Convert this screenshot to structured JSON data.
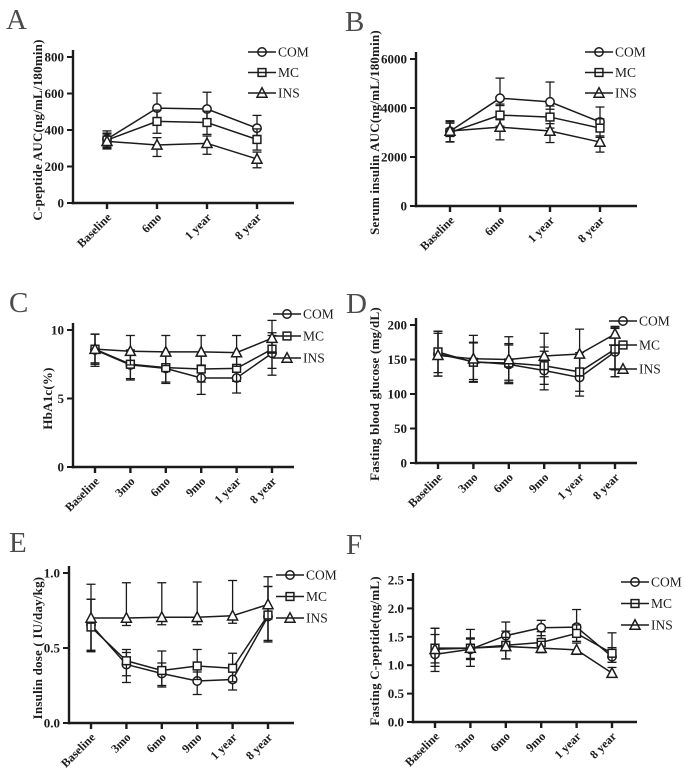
{
  "figure": {
    "background": "#ffffff",
    "ink_color": "#1b1b1b",
    "letter_color": "#4b4b4b",
    "legend_labels": [
      "COM",
      "MC",
      "INS"
    ]
  },
  "chart_data": [
    {
      "panel_label": "A",
      "type": "line",
      "title": "",
      "ylabel": "C-peptide AUC(ng/mL/180min)",
      "xlabel": "",
      "ylim": [
        0,
        800
      ],
      "yticks": [
        0,
        200,
        400,
        600,
        800
      ],
      "ytick_labels": [
        "0",
        "200",
        "400",
        "600",
        "800"
      ],
      "categories": [
        "Baseline",
        "6mo",
        "1 year",
        "8 year"
      ],
      "grid": false,
      "legend_position": "top-right",
      "series": [
        {
          "name": "COM",
          "marker": "circle",
          "values": [
            350,
            520,
            515,
            410
          ],
          "err_up": [
            45,
            82,
            92,
            70
          ],
          "err_down": [
            48,
            55,
            55,
            40
          ]
        },
        {
          "name": "MC",
          "marker": "square",
          "values": [
            345,
            447,
            441,
            348
          ],
          "err_up": [
            38,
            62,
            62,
            58
          ],
          "err_down": [
            38,
            65,
            65,
            58
          ]
        },
        {
          "name": "INS",
          "marker": "triangle",
          "values": [
            338,
            318,
            327,
            241
          ],
          "err_up": [
            40,
            40,
            40,
            38
          ],
          "err_down": [
            42,
            63,
            60,
            48
          ]
        }
      ]
    },
    {
      "panel_label": "B",
      "type": "line",
      "title": "",
      "ylabel": "Serum insulin AUC(ng/mL/180min)",
      "xlabel": "",
      "ylim": [
        0,
        6000
      ],
      "yticks": [
        0,
        2000,
        4000,
        6000
      ],
      "ytick_labels": [
        "0",
        "2000",
        "4000",
        "6000"
      ],
      "categories": [
        "Baseline",
        "6mo",
        "1 year",
        "8 year"
      ],
      "grid": false,
      "legend_position": "top-right",
      "series": [
        {
          "name": "COM",
          "marker": "circle",
          "values": [
            3050,
            4400,
            4250,
            3430
          ],
          "err_up": [
            430,
            820,
            810,
            610
          ],
          "err_down": [
            430,
            300,
            300,
            300
          ]
        },
        {
          "name": "MC",
          "marker": "square",
          "values": [
            3000,
            3710,
            3630,
            3180
          ],
          "err_up": [
            380,
            450,
            450,
            380
          ],
          "err_down": [
            380,
            450,
            450,
            380
          ]
        },
        {
          "name": "INS",
          "marker": "triangle",
          "values": [
            3060,
            3220,
            3060,
            2610
          ],
          "err_up": [
            380,
            300,
            300,
            250
          ],
          "err_down": [
            450,
            520,
            470,
            410
          ]
        }
      ]
    },
    {
      "panel_label": "C",
      "type": "line",
      "title": "",
      "ylabel": "HbA1c(%)",
      "xlabel": "",
      "ylim": [
        0,
        10
      ],
      "yticks": [
        0,
        5,
        10
      ],
      "ytick_labels": [
        "0",
        "5",
        "10"
      ],
      "categories": [
        "Baseline",
        "3mo",
        "6mo",
        "9mo",
        "1 year",
        "8 year"
      ],
      "grid": false,
      "legend_position": "top-right",
      "series": [
        {
          "name": "COM",
          "marker": "circle",
          "values": [
            8.55,
            7.45,
            7.2,
            6.5,
            6.5,
            8.3
          ],
          "err_up": [
            1.15,
            1.0,
            1.0,
            0.9,
            0.95,
            1.3
          ],
          "err_down": [
            1.2,
            1.1,
            1.1,
            1.2,
            1.1,
            1.6
          ]
        },
        {
          "name": "MC",
          "marker": "square",
          "values": [
            8.6,
            7.5,
            7.25,
            7.15,
            7.2,
            8.6
          ],
          "err_up": [
            1.1,
            1.05,
            1.05,
            0.95,
            0.95,
            1.2
          ],
          "err_down": [
            1.1,
            1.05,
            1.05,
            0.95,
            0.95,
            1.4
          ]
        },
        {
          "name": "INS",
          "marker": "triangle",
          "values": [
            8.6,
            8.45,
            8.4,
            8.4,
            8.35,
            9.4
          ],
          "err_up": [
            1.1,
            1.15,
            1.2,
            1.2,
            1.25,
            1.3
          ],
          "err_down": [
            1.0,
            1.0,
            1.0,
            1.0,
            1.0,
            1.0
          ]
        }
      ]
    },
    {
      "panel_label": "D",
      "type": "line",
      "title": "",
      "ylabel": "Fasting blood glucose (mg/dL)",
      "xlabel": "",
      "ylim": [
        0,
        200
      ],
      "yticks": [
        0,
        50,
        100,
        150,
        200
      ],
      "ytick_labels": [
        "0",
        "50",
        "100",
        "150",
        "200"
      ],
      "categories": [
        "Baseline",
        "3mo",
        "6mo",
        "9mo",
        "1 year",
        "8 year"
      ],
      "grid": false,
      "legend_position": "top-right",
      "series": [
        {
          "name": "COM",
          "marker": "circle",
          "values": [
            158,
            147,
            143,
            134,
            124,
            161
          ],
          "err_up": [
            33,
            28,
            28,
            28,
            30,
            35
          ],
          "err_down": [
            32,
            30,
            28,
            28,
            27,
            36
          ]
        },
        {
          "name": "MC",
          "marker": "square",
          "values": [
            161,
            146,
            145,
            141,
            132,
            165
          ],
          "err_up": [
            30,
            28,
            28,
            27,
            28,
            30
          ],
          "err_down": [
            30,
            28,
            28,
            27,
            28,
            30
          ]
        },
        {
          "name": "INS",
          "marker": "triangle",
          "values": [
            156,
            151,
            150,
            155,
            158,
            187
          ],
          "err_up": [
            32,
            34,
            33,
            33,
            36,
            11
          ],
          "err_down": [
            30,
            30,
            30,
            30,
            32,
            62
          ]
        }
      ]
    },
    {
      "panel_label": "E",
      "type": "line",
      "title": "",
      "ylabel": "Insulin dose ( IU/day/kg)",
      "xlabel": "",
      "ylim": [
        0,
        1.0
      ],
      "yticks": [
        0,
        0.5,
        1.0
      ],
      "ytick_labels": [
        "0.0",
        "0.5",
        "1.0"
      ],
      "categories": [
        "Baseline",
        "3mo",
        "6mo",
        "9mo",
        "1 year",
        "8 year"
      ],
      "grid": false,
      "legend_position": "top-right",
      "series": [
        {
          "name": "COM",
          "marker": "circle",
          "values": [
            0.655,
            0.39,
            0.33,
            0.28,
            0.29,
            0.71
          ],
          "err_up": [
            0.17,
            0.08,
            0.07,
            0.06,
            0.06,
            0.2
          ],
          "err_down": [
            0.175,
            0.12,
            0.09,
            0.09,
            0.07,
            0.17
          ]
        },
        {
          "name": "MC",
          "marker": "square",
          "values": [
            0.64,
            0.415,
            0.35,
            0.38,
            0.365,
            0.72
          ],
          "err_up": [
            0.185,
            0.075,
            0.13,
            0.11,
            0.1,
            0.19
          ],
          "err_down": [
            0.165,
            0.1,
            0.1,
            0.09,
            0.09,
            0.17
          ]
        },
        {
          "name": "INS",
          "marker": "triangle",
          "values": [
            0.7,
            0.7,
            0.705,
            0.705,
            0.715,
            0.79
          ],
          "err_up": [
            0.225,
            0.235,
            0.23,
            0.235,
            0.235,
            0.185
          ],
          "err_down": [
            0.215,
            0.05,
            0.05,
            0.05,
            0.05,
            0.24
          ]
        }
      ]
    },
    {
      "panel_label": "F",
      "type": "line",
      "title": "",
      "ylabel": "Fasting C-peptide(ng/mL)",
      "xlabel": "",
      "ylim": [
        0,
        2.5
      ],
      "yticks": [
        0,
        0.5,
        1.0,
        1.5,
        2.0,
        2.5
      ],
      "ytick_labels": [
        "0.0",
        "0.5",
        "1.0",
        "1.5",
        "2.0",
        "2.5"
      ],
      "categories": [
        "Baseline",
        "3mo",
        "6mo",
        "9mo",
        "1 year",
        "8 year"
      ],
      "grid": false,
      "legend_position": "top-right",
      "series": [
        {
          "name": "COM",
          "marker": "circle",
          "values": [
            1.19,
            1.28,
            1.52,
            1.66,
            1.67,
            1.15
          ],
          "err_up": [
            0.46,
            0.2,
            0.24,
            0.13,
            0.31,
            0.16
          ],
          "err_down": [
            0.21,
            0.16,
            0.2,
            0.14,
            0.14,
            0.1
          ]
        },
        {
          "name": "MC",
          "marker": "square",
          "values": [
            1.3,
            1.3,
            1.35,
            1.4,
            1.56,
            1.21
          ],
          "err_up": [
            0.35,
            0.33,
            0.25,
            0.19,
            0.15,
            0.36
          ],
          "err_down": [
            0.26,
            0.2,
            0.24,
            0.16,
            0.14,
            0.16
          ]
        },
        {
          "name": "INS",
          "marker": "triangle",
          "values": [
            1.28,
            1.3,
            1.33,
            1.3,
            1.27,
            0.86
          ],
          "err_up": [
            0.26,
            0.16,
            0.16,
            0.12,
            0.12,
            0.1
          ],
          "err_down": [
            0.39,
            0.32,
            0.22,
            0.08,
            0.08,
            0.07
          ]
        }
      ]
    }
  ]
}
